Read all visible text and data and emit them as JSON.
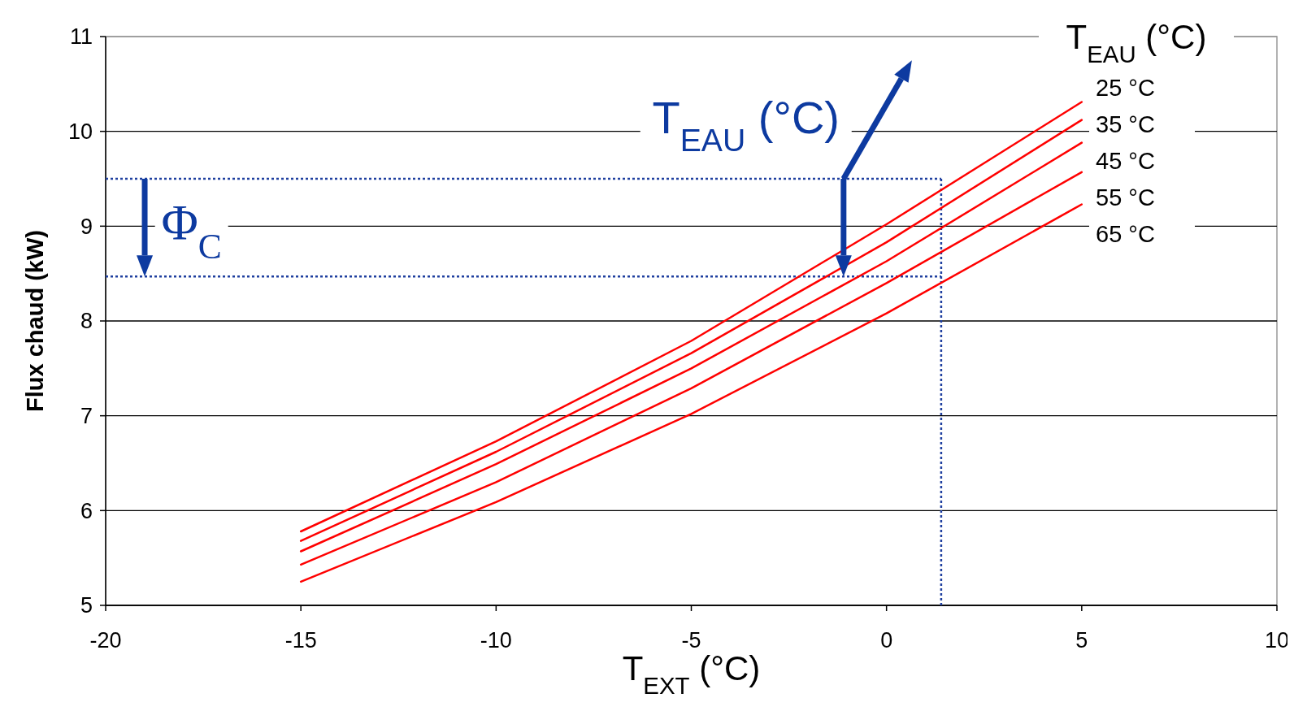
{
  "chart_data": {
    "type": "line",
    "xlabel": "T$_{EXT}$ (°C)",
    "ylabel": "Flux chaud (kW)",
    "legend_title": "T$_{EAU}$ (°C)",
    "legend": "top right",
    "grid": "y",
    "line_style": "solid",
    "marker": "none",
    "x": [
      -15,
      -10,
      -5,
      0,
      5
    ],
    "xlim": [
      -20,
      10
    ],
    "xticks": [
      -20,
      -15,
      -10,
      -5,
      0,
      5,
      10
    ],
    "ylim": [
      5,
      11
    ],
    "yticks": [
      5,
      6,
      7,
      8,
      9,
      10,
      11
    ],
    "series": [
      {
        "name": "25 °C",
        "color": "#ff0000",
        "values": [
          5.78,
          6.73,
          7.79,
          9.02,
          10.31
        ]
      },
      {
        "name": "35 °C",
        "color": "#ff0000",
        "values": [
          5.68,
          6.62,
          7.66,
          8.83,
          10.12
        ]
      },
      {
        "name": "45 °C",
        "color": "#ff0000",
        "values": [
          5.57,
          6.49,
          7.5,
          8.63,
          9.88
        ]
      },
      {
        "name": "55 °C",
        "color": "#ff0000",
        "values": [
          5.43,
          6.3,
          7.29,
          8.4,
          9.57
        ]
      },
      {
        "name": "65 °C",
        "color": "#ff0000",
        "values": [
          5.25,
          6.09,
          7.02,
          8.08,
          9.23
        ]
      }
    ],
    "ref_lines": [
      {
        "axis": "y",
        "value": 9.5,
        "color": "#1f3f9f",
        "line_style": "dotted"
      },
      {
        "axis": "y",
        "value": 8.47,
        "color": "#1f3f9f",
        "line_style": "dotted"
      },
      {
        "axis": "x",
        "value": 1.4,
        "color": "#1f3f9f",
        "line_style": "dotted"
      }
    ],
    "annotations": [
      "Φ$_{C}$",
      "T$_{EAU}$ (°C)"
    ]
  }
}
